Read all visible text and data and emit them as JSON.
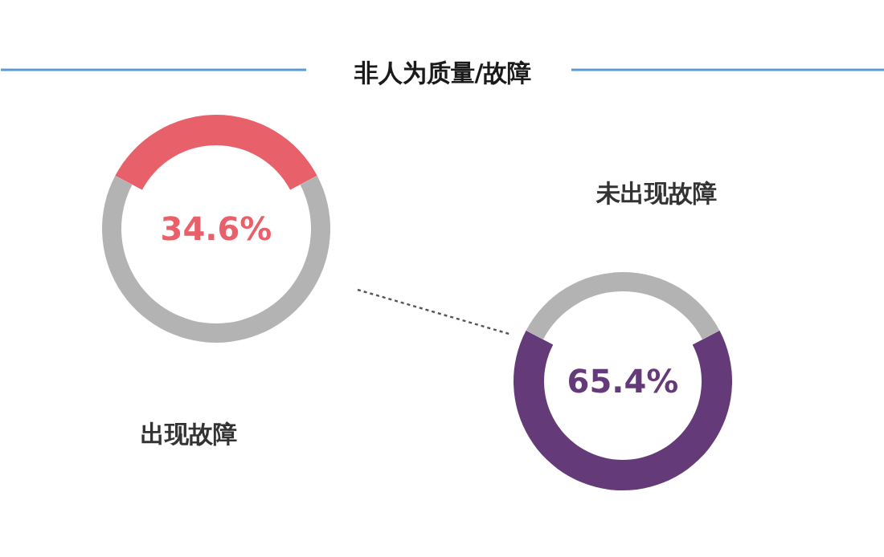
{
  "chart_data": [
    {
      "type": "donut",
      "title": "非人为质量/故障",
      "subtitle": "出现故障",
      "categories": [
        null,
        null
      ],
      "values": [
        34.6,
        65.4
      ],
      "colors": [
        "#e8606a",
        "#b3b3b3"
      ],
      "value_labels": [
        "34.6%",
        null
      ]
    },
    {
      "type": "donut",
      "title": "未出现故障",
      "categories": [
        null,
        null
      ],
      "values": [
        65.4,
        34.6
      ],
      "colors": [
        "#643a78",
        "#b3b3b3"
      ],
      "value_labels": [
        "65.4%",
        null
      ]
    }
  ]
}
